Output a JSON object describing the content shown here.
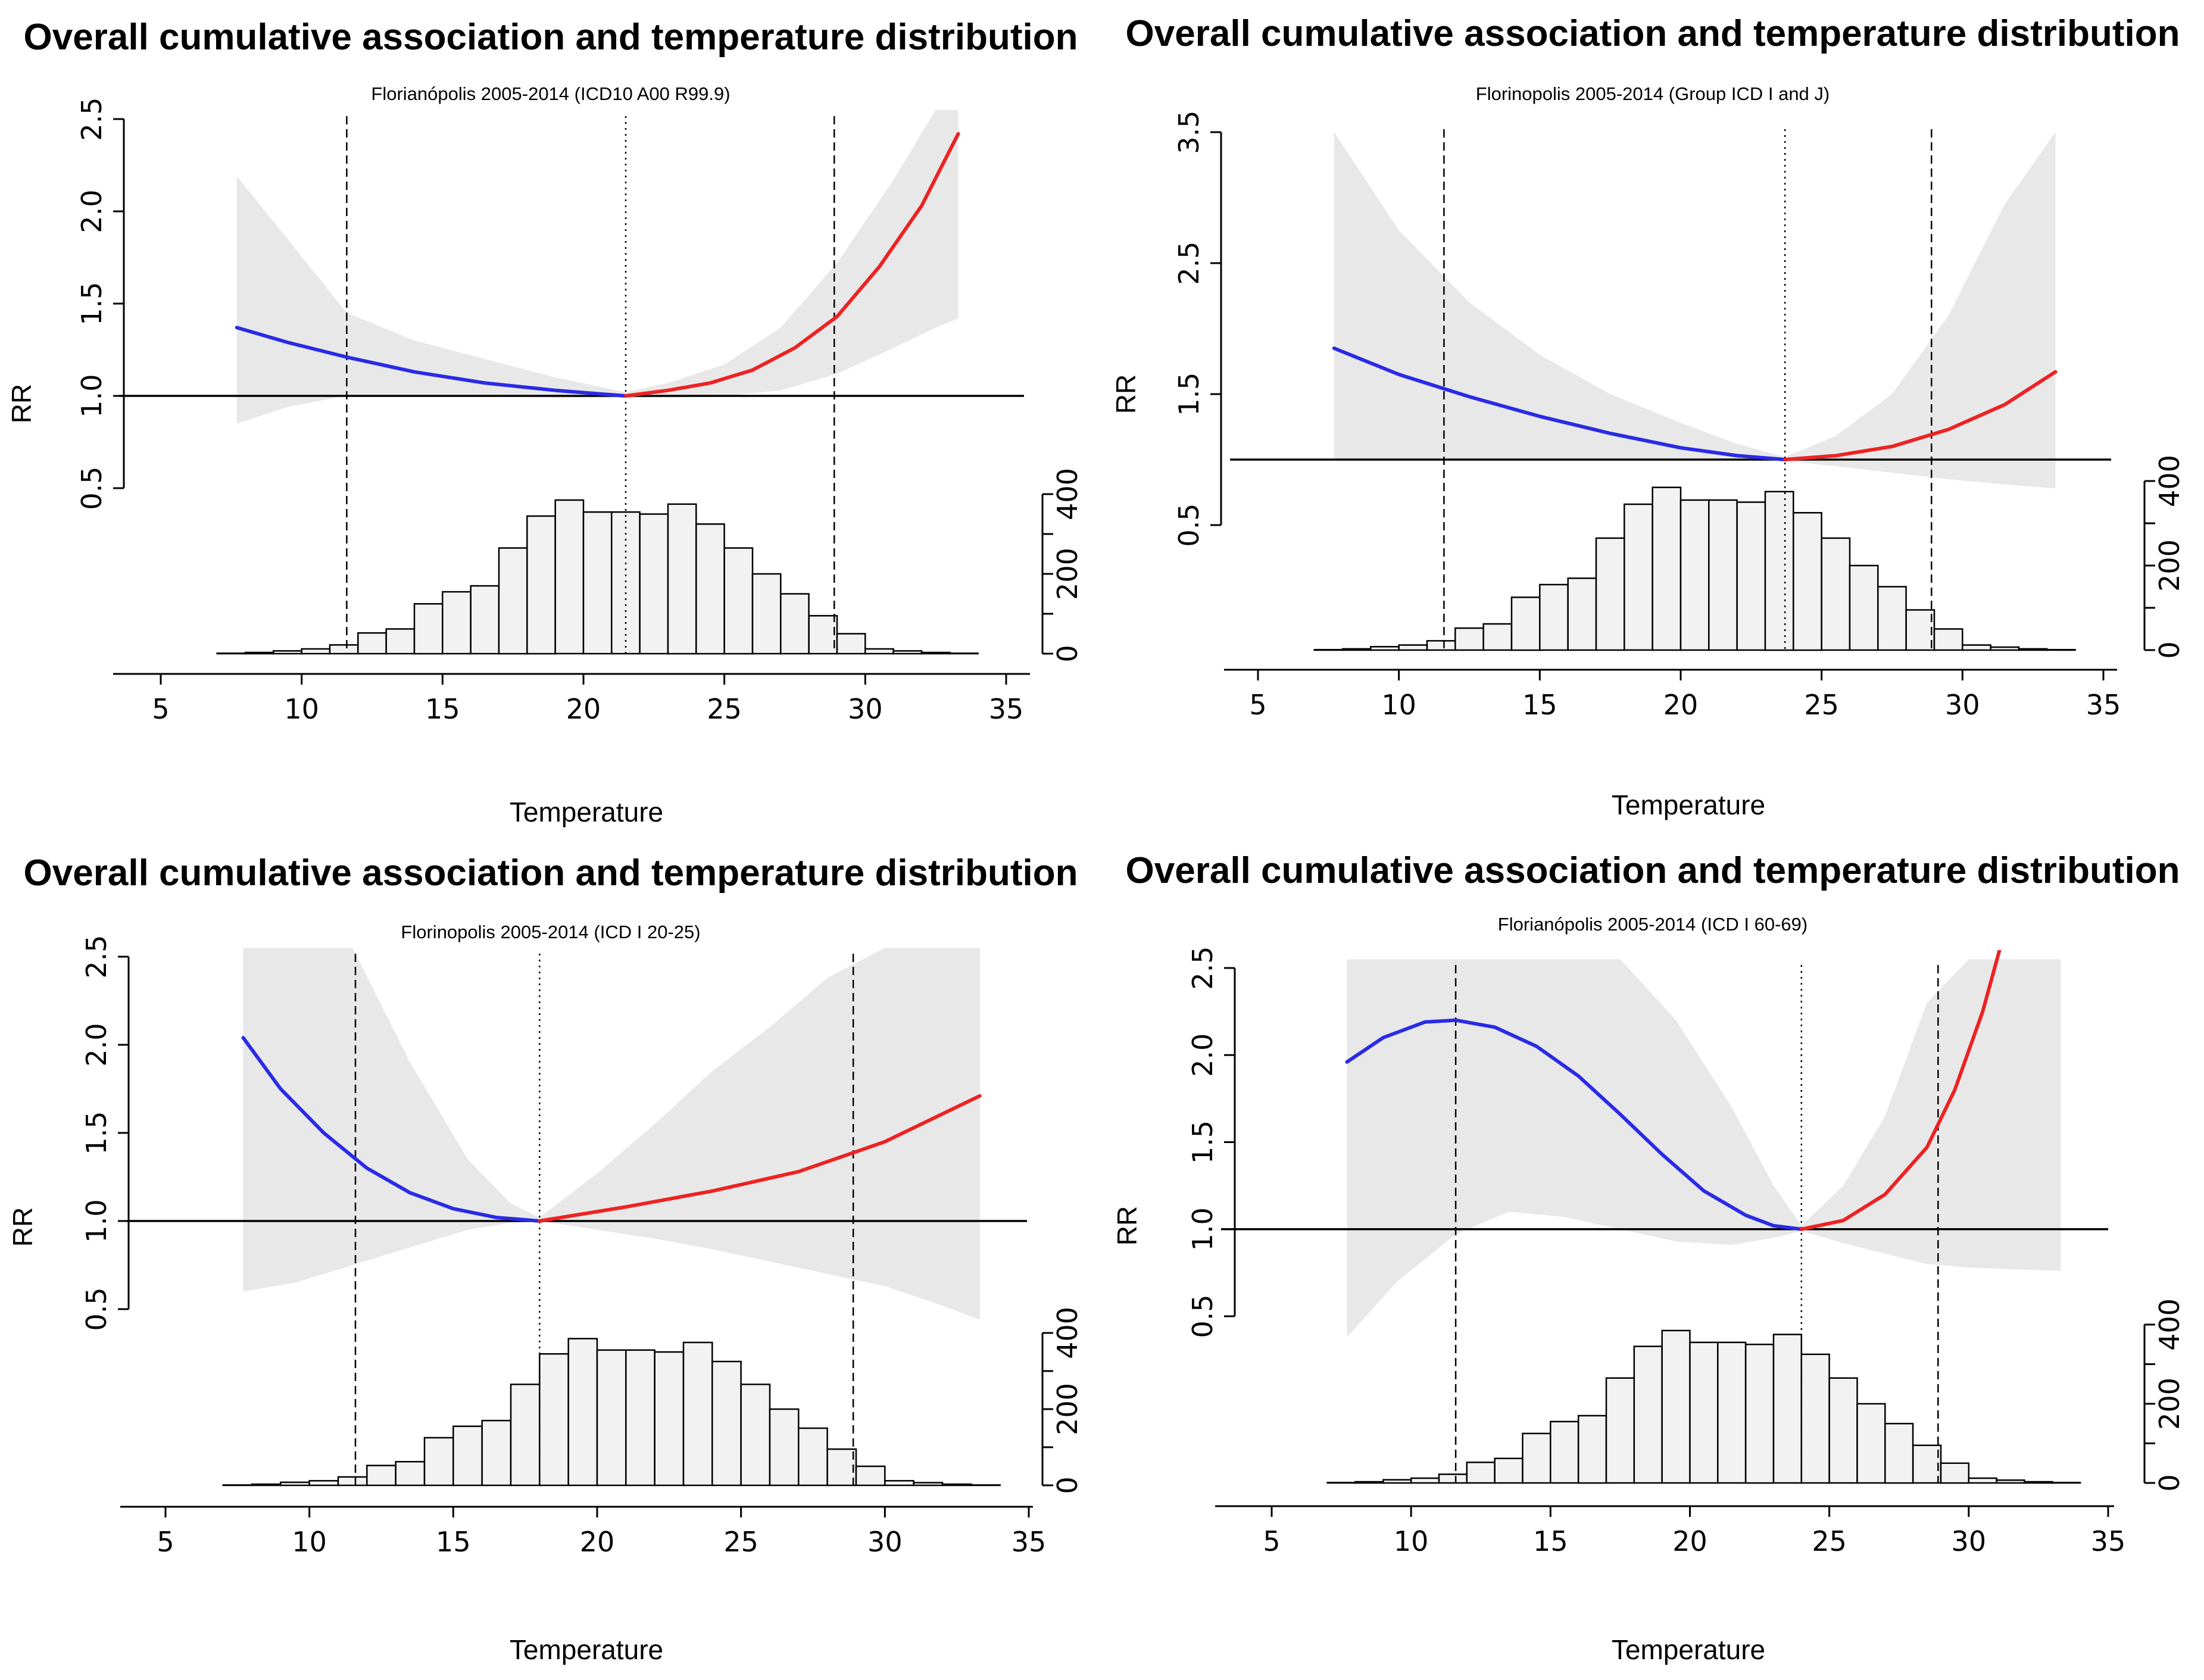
{
  "figure": {
    "colors": {
      "cold": "#2a2ae6",
      "heat": "#ee2222",
      "ci_band": "#e8e8e8",
      "histogram_fill": "#f2f2f2",
      "line": "#000000"
    }
  },
  "chart_data": [
    {
      "type": "line",
      "title": "Overall cumulative association and temperature distribution",
      "subtitle": "Florianópolis 2005-2014  (ICD10  A00 R99.9)",
      "xlabel": "Temperature",
      "ylabel": "RR",
      "xlim": [
        5,
        35
      ],
      "ylim": [
        0.5,
        2.5
      ],
      "x_ticks": [
        "5",
        "10",
        "15",
        "20",
        "25",
        "30",
        "35"
      ],
      "y_ticks": [
        "0.5",
        "1.0",
        "1.5",
        "2.0",
        "2.5"
      ],
      "hist_ticks": [
        "0",
        "200",
        "400"
      ],
      "reference_lines": {
        "mmt": 21.5,
        "p1": 11.6,
        "p99": 28.9
      },
      "series": [
        {
          "name": "cold",
          "x": [
            7.7,
            9.5,
            11.6,
            14,
            16.5,
            19,
            21.5
          ],
          "values": [
            1.37,
            1.29,
            1.21,
            1.13,
            1.07,
            1.03,
            1.0
          ]
        },
        {
          "name": "heat",
          "x": [
            21.5,
            23,
            24.5,
            26,
            27.5,
            29,
            30.5,
            32,
            33.3
          ],
          "values": [
            1.0,
            1.03,
            1.07,
            1.14,
            1.26,
            1.43,
            1.7,
            2.03,
            2.42
          ]
        }
      ],
      "ci_band": {
        "x": [
          7.7,
          9.5,
          11.6,
          14,
          16.5,
          19,
          21.5,
          23,
          25,
          27,
          29,
          31,
          32.5,
          33.3
        ],
        "lower": [
          0.85,
          0.94,
          1.0,
          1.0,
          1.0,
          0.99,
          0.99,
          0.99,
          1.0,
          1.03,
          1.12,
          1.26,
          1.37,
          1.42
        ],
        "upper": [
          2.19,
          1.85,
          1.45,
          1.3,
          1.2,
          1.1,
          1.02,
          1.07,
          1.17,
          1.37,
          1.72,
          2.17,
          2.6,
          2.6
        ]
      },
      "histogram": {
        "bin_start": 7,
        "bin_width": 1,
        "counts": [
          1,
          3,
          7,
          12,
          22,
          52,
          62,
          125,
          155,
          170,
          265,
          345,
          385,
          355,
          355,
          350,
          375,
          325,
          265,
          200,
          150,
          95,
          50,
          12,
          7,
          3,
          1
        ]
      }
    },
    {
      "type": "line",
      "title": "Overall cumulative association and temperature distribution",
      "subtitle": "Florinopolis 2005-2014 (Group ICD I and J)",
      "xlabel": "Temperature",
      "ylabel": "RR",
      "xlim": [
        5,
        35
      ],
      "ylim": [
        0.5,
        3.5
      ],
      "x_ticks": [
        "5",
        "10",
        "15",
        "20",
        "25",
        "30",
        "35"
      ],
      "y_ticks": [
        "0.5",
        "1.5",
        "2.5",
        "3.5"
      ],
      "hist_ticks": [
        "0",
        "200",
        "400"
      ],
      "reference_lines": {
        "mmt": 23.7,
        "p1": 11.6,
        "p99": 28.9
      },
      "series": [
        {
          "name": "cold",
          "x": [
            7.7,
            10,
            12.5,
            15,
            17.5,
            20,
            22,
            23.7
          ],
          "values": [
            1.85,
            1.65,
            1.48,
            1.33,
            1.2,
            1.09,
            1.03,
            1.0
          ]
        },
        {
          "name": "heat",
          "x": [
            23.7,
            25.5,
            27.5,
            29.5,
            31.5,
            33.3
          ],
          "values": [
            1.0,
            1.03,
            1.1,
            1.23,
            1.42,
            1.67
          ]
        }
      ],
      "ci_band": {
        "x": [
          7.7,
          10,
          12.5,
          15,
          17.5,
          20,
          22,
          23.7,
          25.5,
          27.5,
          29.5,
          31.5,
          33.3
        ],
        "lower": [
          1.0,
          1.0,
          1.0,
          1.0,
          1.0,
          1.0,
          0.99,
          0.99,
          0.95,
          0.9,
          0.85,
          0.81,
          0.78
        ],
        "upper": [
          3.5,
          2.75,
          2.2,
          1.8,
          1.5,
          1.28,
          1.12,
          1.02,
          1.18,
          1.5,
          2.1,
          2.95,
          3.5
        ]
      },
      "histogram": {
        "bin_start": 7,
        "bin_width": 1,
        "counts": [
          1,
          3,
          8,
          12,
          22,
          52,
          62,
          125,
          155,
          170,
          265,
          345,
          385,
          355,
          355,
          350,
          375,
          325,
          265,
          200,
          150,
          95,
          50,
          12,
          7,
          3,
          1
        ]
      }
    },
    {
      "type": "line",
      "title": "Overall cumulative association and temperature distribution",
      "subtitle": "Florinopolis 2005-2014 (ICD I 20-25)",
      "xlabel": "Temperature",
      "ylabel": "RR",
      "xlim": [
        5,
        35
      ],
      "ylim": [
        0.5,
        2.5
      ],
      "x_ticks": [
        "5",
        "10",
        "15",
        "20",
        "25",
        "30",
        "35"
      ],
      "y_ticks": [
        "0.5",
        "1.0",
        "1.5",
        "2.0",
        "2.5"
      ],
      "hist_ticks": [
        "0",
        "200",
        "400"
      ],
      "reference_lines": {
        "mmt": 18,
        "p1": 11.6,
        "p99": 28.9
      },
      "series": [
        {
          "name": "cold",
          "x": [
            7.7,
            9,
            10.5,
            12,
            13.5,
            15,
            16.5,
            18
          ],
          "values": [
            2.04,
            1.75,
            1.5,
            1.3,
            1.16,
            1.07,
            1.02,
            1.0
          ]
        },
        {
          "name": "heat",
          "x": [
            18,
            21,
            24,
            27,
            30,
            33.3
          ],
          "values": [
            1.0,
            1.08,
            1.17,
            1.28,
            1.45,
            1.71
          ]
        }
      ],
      "ci_band": {
        "x": [
          7.7,
          9.5,
          11.5,
          13.5,
          15.5,
          17,
          18,
          20,
          22,
          24,
          26,
          28,
          30,
          32,
          33.3
        ],
        "lower": [
          0.6,
          0.65,
          0.75,
          0.85,
          0.95,
          0.99,
          1.0,
          0.95,
          0.9,
          0.84,
          0.77,
          0.7,
          0.63,
          0.52,
          0.44
        ],
        "upper": [
          2.6,
          2.6,
          2.6,
          1.9,
          1.35,
          1.1,
          1.02,
          1.27,
          1.55,
          1.85,
          2.1,
          2.38,
          2.6,
          2.6,
          2.6
        ]
      },
      "histogram": {
        "bin_start": 7,
        "bin_width": 1,
        "counts": [
          1,
          3,
          8,
          12,
          22,
          52,
          62,
          125,
          155,
          170,
          265,
          345,
          385,
          355,
          355,
          350,
          375,
          325,
          265,
          200,
          150,
          95,
          50,
          12,
          7,
          3,
          1
        ]
      }
    },
    {
      "type": "line",
      "title": "Overall cumulative association and temperature distribution",
      "subtitle": "Florianópolis 2005-2014 (ICD I 60-69)",
      "xlabel": "Temperature",
      "ylabel": "RR",
      "xlim": [
        5,
        35
      ],
      "ylim": [
        0.5,
        2.5
      ],
      "x_ticks": [
        "5",
        "10",
        "15",
        "20",
        "25",
        "30",
        "35"
      ],
      "y_ticks": [
        "0.5",
        "1.0",
        "1.5",
        "2.0",
        "2.5"
      ],
      "hist_ticks": [
        "0",
        "200",
        "400"
      ],
      "reference_lines": {
        "mmt": 24,
        "p1": 11.6,
        "p99": 28.9
      },
      "series": [
        {
          "name": "cold",
          "x": [
            7.7,
            9,
            10.5,
            11.6,
            13,
            14.5,
            16,
            17.5,
            19,
            20.5,
            22,
            23,
            24
          ],
          "values": [
            1.96,
            2.1,
            2.19,
            2.2,
            2.16,
            2.05,
            1.88,
            1.66,
            1.43,
            1.22,
            1.08,
            1.02,
            1.0
          ]
        },
        {
          "name": "heat",
          "x": [
            24,
            25.5,
            27,
            28.5,
            29.5,
            30.5,
            31.1
          ],
          "values": [
            1.0,
            1.05,
            1.2,
            1.47,
            1.8,
            2.25,
            2.6
          ]
        }
      ],
      "ci_band": {
        "x": [
          7.7,
          9.5,
          11.6,
          13.5,
          15.5,
          17.5,
          19.5,
          21.5,
          23,
          24,
          25.5,
          27,
          28.5,
          30,
          31.5,
          33.3
        ],
        "lower": [
          0.38,
          0.7,
          0.97,
          1.1,
          1.07,
          1.0,
          0.93,
          0.91,
          0.95,
          0.99,
          0.92,
          0.86,
          0.8,
          0.78,
          0.77,
          0.76
        ],
        "upper": [
          2.6,
          2.6,
          2.6,
          2.6,
          2.6,
          2.6,
          2.2,
          1.7,
          1.25,
          1.02,
          1.25,
          1.65,
          2.3,
          2.6,
          2.6,
          2.6
        ]
      },
      "histogram": {
        "bin_start": 7,
        "bin_width": 1,
        "counts": [
          1,
          3,
          8,
          12,
          22,
          52,
          62,
          125,
          155,
          170,
          265,
          345,
          385,
          355,
          355,
          350,
          375,
          325,
          265,
          200,
          150,
          95,
          50,
          12,
          7,
          3,
          1
        ]
      }
    }
  ]
}
